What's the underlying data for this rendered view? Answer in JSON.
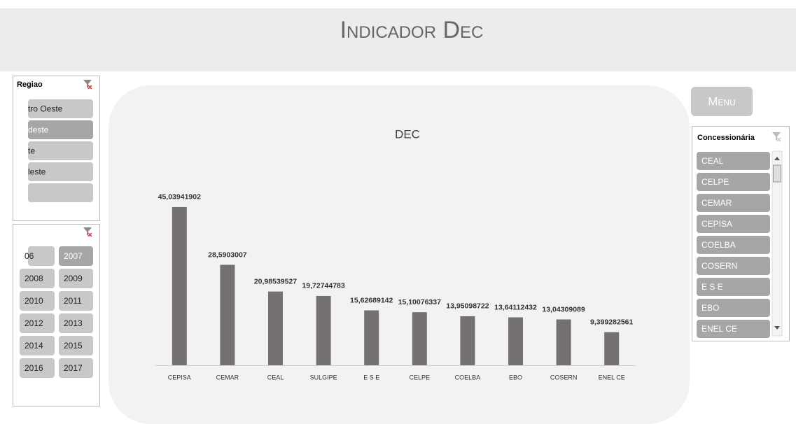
{
  "header": {
    "title": "Indicador Dec"
  },
  "menu": {
    "label": "Menu"
  },
  "region_slicer": {
    "title": "Regiao",
    "items": [
      "tro Oeste",
      "deste",
      "te",
      "leste"
    ]
  },
  "year_slicer": {
    "items": [
      "06",
      "2007",
      "2008",
      "2009",
      "2010",
      "2011",
      "2012",
      "2013",
      "2014",
      "2015",
      "2016",
      "2017"
    ]
  },
  "company_slicer": {
    "title": "Concessionária",
    "items": [
      "CEAL",
      "CELPE",
      "CEMAR",
      "CEPISA",
      "COELBA",
      "COSERN",
      "E S E",
      "EBO",
      "ENEL CE"
    ]
  },
  "chart_data": {
    "type": "bar",
    "title": "DEC",
    "categories": [
      "CEPISA",
      "CEMAR",
      "CEAL",
      "SULGIPE",
      "E S E",
      "CELPE",
      "COELBA",
      "EBO",
      "COSERN",
      "ENEL CE"
    ],
    "values": [
      45.03941902,
      28.5903007,
      20.98539527,
      19.72744783,
      15.62689142,
      15.10076337,
      13.95098722,
      13.64112432,
      13.04309089,
      9.399282561
    ],
    "value_labels": [
      "45,03941902",
      "28,5903007",
      "20,98539527",
      "19,72744783",
      "15,62689142",
      "15,10076337",
      "13,95098722",
      "13,64112432",
      "13,04309089",
      "9,399282561"
    ],
    "color": "#767171",
    "ylim": [
      0,
      50
    ]
  }
}
